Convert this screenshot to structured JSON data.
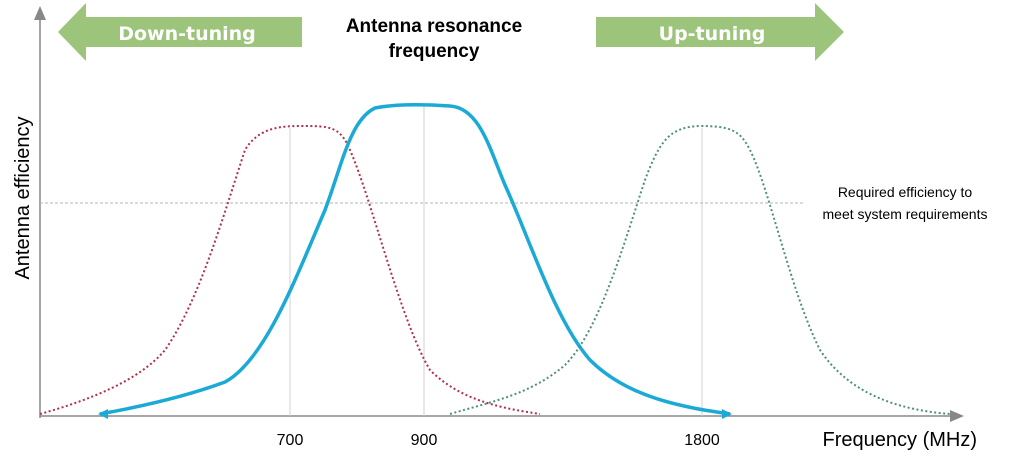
{
  "title": {
    "line1": "Antenna resonance",
    "line2": "frequency"
  },
  "arrows": {
    "left_label": "Down-tuning",
    "right_label": "Up-tuning",
    "fill_color": "#9cc47a"
  },
  "axes": {
    "y_label": "Antenna efficiency",
    "x_label": "Frequency  (MHz)",
    "x_ticks": [
      "700",
      "900",
      "1800"
    ]
  },
  "annotation": {
    "line1": "Required efficiency to",
    "line2": "meet system requirements"
  },
  "curves": {
    "down_color": "#b0304a",
    "center_color": "#1ba9d6",
    "up_color": "#4f8f7a"
  }
}
